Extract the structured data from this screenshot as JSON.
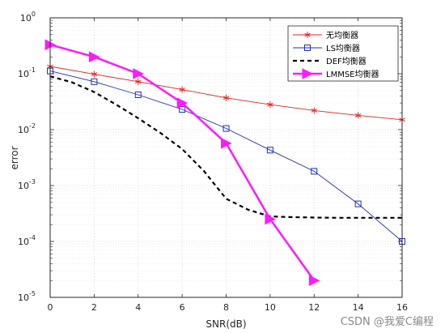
{
  "watermark": "CSDN @我爱C编程",
  "chart_data": {
    "type": "line",
    "xlabel": "SNR(dB)",
    "ylabel": "error",
    "yscale": "log",
    "xlim": [
      0,
      16
    ],
    "ylim": [
      1e-05,
      1
    ],
    "xticks": [
      "0",
      "2",
      "4",
      "6",
      "8",
      "10",
      "12",
      "14",
      "16"
    ],
    "yticks": [
      {
        "base": "10",
        "exp": "-5",
        "value": 1e-05
      },
      {
        "base": "10",
        "exp": "-4",
        "value": 0.0001
      },
      {
        "base": "10",
        "exp": "-3",
        "value": 0.001
      },
      {
        "base": "10",
        "exp": "-2",
        "value": 0.01
      },
      {
        "base": "10",
        "exp": "-1",
        "value": 0.1
      },
      {
        "base": "10",
        "exp": "0",
        "value": 1
      }
    ],
    "grid": true,
    "minor_grid": true,
    "legend_position": "top-right",
    "series": [
      {
        "name": "无均衡器",
        "color": "#e8231d",
        "marker": "asterisk",
        "dash": "solid",
        "x": [
          0,
          2,
          4,
          6,
          8,
          10,
          12,
          14,
          16
        ],
        "y": [
          0.135,
          0.098,
          0.072,
          0.052,
          0.037,
          0.028,
          0.022,
          0.018,
          0.015
        ]
      },
      {
        "name": "LS均衡器",
        "color": "#1f2fbf",
        "marker": "square",
        "dash": "solid",
        "x": [
          0,
          2,
          4,
          6,
          8,
          10,
          12,
          14,
          16
        ],
        "y": [
          0.112,
          0.072,
          0.042,
          0.023,
          0.0105,
          0.0043,
          0.0018,
          0.00047,
          0.0001
        ]
      },
      {
        "name": "DEF均衡器",
        "color": "#000000",
        "marker": "none",
        "dash": "dashed",
        "x": [
          0,
          1,
          2,
          3,
          4,
          5,
          6,
          7,
          8,
          9,
          10,
          11,
          12,
          13,
          14,
          15,
          16
        ],
        "y": [
          0.09,
          0.07,
          0.047,
          0.028,
          0.016,
          0.0088,
          0.0045,
          0.0018,
          0.00058,
          0.00037,
          0.00028,
          0.000272,
          0.000268,
          0.000265,
          0.000265,
          0.000265,
          0.000265
        ]
      },
      {
        "name": "LMMSE均衡器",
        "color": "#ff19ff",
        "marker": "triangle-right",
        "dash": "solid",
        "x": [
          0,
          2,
          4,
          6,
          8,
          10,
          12
        ],
        "y": [
          0.33,
          0.2,
          0.1,
          0.03,
          0.0057,
          0.00025,
          2e-05
        ]
      }
    ]
  }
}
